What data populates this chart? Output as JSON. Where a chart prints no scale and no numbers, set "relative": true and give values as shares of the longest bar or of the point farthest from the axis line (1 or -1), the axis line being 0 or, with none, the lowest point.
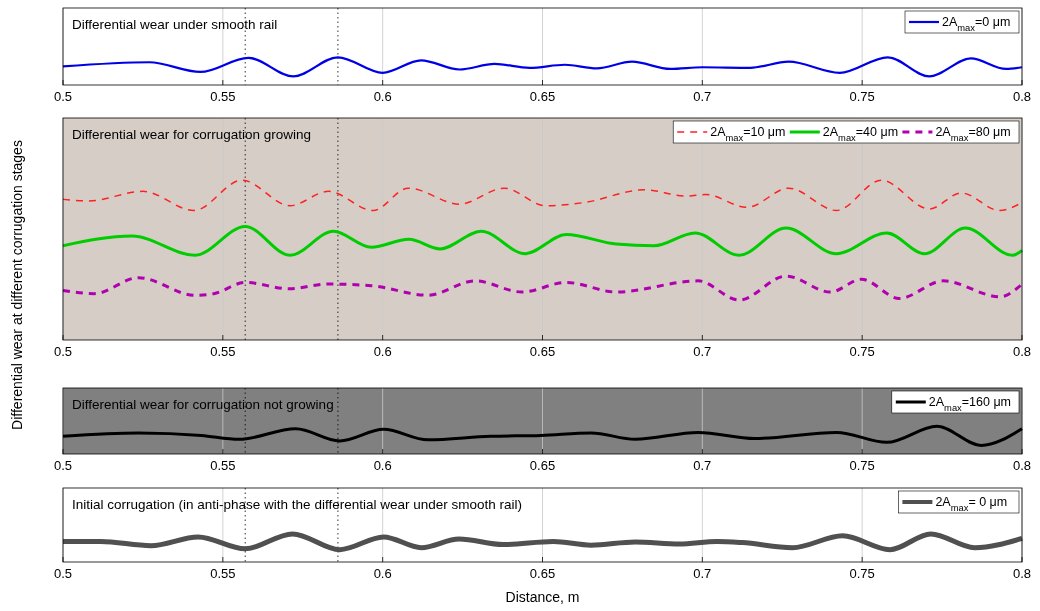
{
  "chart_data": [
    {
      "type": "line",
      "title": "Differential wear under smooth rail",
      "ylabel": "Differential wear at different corrugation stages",
      "relative": true,
      "xlim": [
        0.5,
        0.8
      ],
      "xticks": [
        0.5,
        0.55,
        0.6,
        0.65,
        0.7,
        0.75,
        0.8
      ],
      "grid": "x",
      "legend": "top right",
      "line_style": "solid",
      "marker": "none",
      "ref_lines": [
        {
          "axis": "x",
          "value": 0.557,
          "line_style": "dotted"
        },
        {
          "axis": "x",
          "value": 0.586,
          "line_style": "dotted"
        }
      ],
      "series": [
        {
          "name": "2A$_{max}$=0 μm",
          "color": "#0000e6",
          "x": [
            0.5,
            0.527,
            0.543,
            0.558,
            0.572,
            0.586,
            0.6,
            0.612,
            0.624,
            0.635,
            0.646,
            0.657,
            0.667,
            0.678,
            0.69,
            0.7,
            0.715,
            0.727,
            0.743,
            0.758,
            0.771,
            0.784,
            0.795,
            0.8
          ],
          "values": [
            0.67,
            0.82,
            0.47,
            0.98,
            0.31,
            1,
            0.44,
            0.89,
            0.56,
            0.76,
            0.62,
            0.73,
            0.6,
            0.84,
            0.58,
            0.64,
            0.62,
            0.84,
            0.44,
            1,
            0.31,
            0.96,
            0.58,
            0.64
          ]
        }
      ]
    },
    {
      "type": "line",
      "title": "Differential wear for corrugation growing",
      "relative": true,
      "xlim": [
        0.5,
        0.8
      ],
      "xticks": [
        0.5,
        0.55,
        0.6,
        0.65,
        0.7,
        0.75,
        0.8
      ],
      "grid": "x",
      "legend": "top right",
      "marker": "none",
      "ref_lines": [
        {
          "axis": "x",
          "value": 0.557,
          "line_style": "dotted"
        },
        {
          "axis": "x",
          "value": 0.586,
          "line_style": "dotted"
        }
      ],
      "series": [
        {
          "name": "2A$_{max}$=10 μm",
          "color": "#ff2020",
          "line_style": "dashed",
          "x": [
            0.5,
            0.508,
            0.525,
            0.541,
            0.556,
            0.571,
            0.583,
            0.597,
            0.608,
            0.624,
            0.638,
            0.651,
            0.663,
            0.682,
            0.695,
            0.701,
            0.714,
            0.727,
            0.742,
            0.756,
            0.771,
            0.781,
            0.793,
            0.8
          ],
          "values": [
            0.88,
            0.87,
            0.93,
            0.81,
            1,
            0.84,
            0.93,
            0.81,
            0.95,
            0.85,
            0.95,
            0.84,
            0.86,
            0.94,
            0.9,
            0.91,
            0.83,
            0.95,
            0.81,
            1,
            0.82,
            0.92,
            0.81,
            0.86
          ]
        },
        {
          "name": "2A$_{max}$=40 μm",
          "color": "#00cc00",
          "line_style": "solid",
          "x": [
            0.5,
            0.5216,
            0.5413,
            0.557,
            0.571,
            0.5846,
            0.5964,
            0.6082,
            0.618,
            0.6308,
            0.6446,
            0.6574,
            0.6731,
            0.6849,
            0.6977,
            0.7115,
            0.7262,
            0.7419,
            0.7577,
            0.7695,
            0.7823,
            0.797,
            0.8
          ],
          "values": [
            0.59,
            0.65,
            0.53,
            0.71,
            0.53,
            0.68,
            0.58,
            0.63,
            0.57,
            0.68,
            0.54,
            0.66,
            0.6,
            0.59,
            0.67,
            0.53,
            0.7,
            0.54,
            0.67,
            0.54,
            0.7,
            0.53,
            0.56
          ]
        },
        {
          "name": "2A$_{max}$=80 μm",
          "color": "#b000b0",
          "line_style": "dashed",
          "x": [
            0.5,
            0.5098,
            0.5236,
            0.5413,
            0.5472,
            0.557,
            0.5708,
            0.5826,
            0.5964,
            0.6141,
            0.6289,
            0.6436,
            0.6574,
            0.6731,
            0.6987,
            0.7115,
            0.7262,
            0.74,
            0.7498,
            0.7616,
            0.7754,
            0.7931,
            0.8
          ],
          "values": [
            0.31,
            0.29,
            0.39,
            0.28,
            0.29,
            0.36,
            0.32,
            0.35,
            0.34,
            0.28,
            0.37,
            0.3,
            0.36,
            0.3,
            0.37,
            0.25,
            0.4,
            0.3,
            0.38,
            0.26,
            0.37,
            0.27,
            0.35
          ]
        }
      ]
    },
    {
      "type": "line",
      "title": "Differential wear for corrugation not growing",
      "relative": true,
      "xlim": [
        0.5,
        0.8
      ],
      "xticks": [
        0.5,
        0.55,
        0.6,
        0.65,
        0.7,
        0.75,
        0.8
      ],
      "grid": "x",
      "legend": "top right",
      "line_style": "solid",
      "marker": "none",
      "ref_lines": [
        {
          "axis": "x",
          "value": 0.557,
          "line_style": "dotted"
        },
        {
          "axis": "x",
          "value": 0.586,
          "line_style": "dotted"
        }
      ],
      "series": [
        {
          "name": "2A$_{max}$=160 μm",
          "color": "#000000",
          "x": [
            0.5,
            0.5236,
            0.5433,
            0.5551,
            0.5728,
            0.5866,
            0.6003,
            0.6141,
            0.6338,
            0.6495,
            0.6652,
            0.679,
            0.6987,
            0.7164,
            0.742,
            0.7577,
            0.7734,
            0.7872,
            0.8
          ],
          "values": [
            0.64,
            0.76,
            0.67,
            0.53,
            0.91,
            0.47,
            0.89,
            0.51,
            0.64,
            0.67,
            0.76,
            0.53,
            0.78,
            0.56,
            0.78,
            0.42,
            1,
            0.31,
            0.91
          ]
        }
      ]
    },
    {
      "type": "line",
      "title": "Initial corrugation (in anti-phase with the differential wear under smooth rail)",
      "xlabel": "Distance, m",
      "relative": true,
      "xlim": [
        0.5,
        0.8
      ],
      "xticks": [
        0.5,
        0.55,
        0.6,
        0.65,
        0.7,
        0.75,
        0.8
      ],
      "grid": "x",
      "legend": "top right",
      "line_style": "solid",
      "marker": "none",
      "ref_lines": [
        {
          "axis": "x",
          "value": 0.557,
          "line_style": "dotted"
        },
        {
          "axis": "x",
          "value": 0.586,
          "line_style": "dotted"
        }
      ],
      "series": [
        {
          "name": "2A$_{max}$= 0 μm",
          "color": "#505050",
          "x": [
            0.5,
            0.5118,
            0.5275,
            0.5423,
            0.557,
            0.5718,
            0.5866,
            0.6003,
            0.6121,
            0.6239,
            0.6377,
            0.6534,
            0.6652,
            0.679,
            0.6928,
            0.7046,
            0.7125,
            0.7282,
            0.7439,
            0.7587,
            0.7715,
            0.7852,
            0.8
          ],
          "values": [
            0.73,
            0.73,
            0.58,
            0.89,
            0.47,
            1,
            0.44,
            0.89,
            0.51,
            0.82,
            0.62,
            0.73,
            0.6,
            0.71,
            0.64,
            0.73,
            0.69,
            0.51,
            0.93,
            0.44,
            1,
            0.51,
            0.84
          ]
        }
      ]
    }
  ]
}
